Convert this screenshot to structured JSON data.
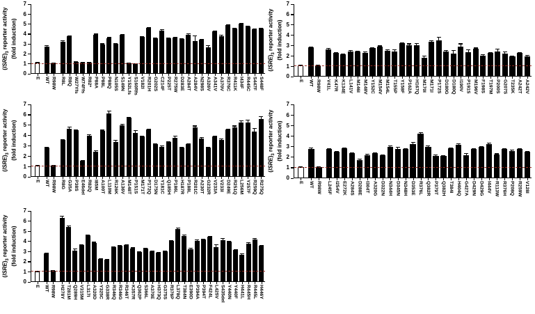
{
  "figure": {
    "background": "#ffffff",
    "bar_color": "#000000",
    "open_bar_fill": "#ffffff",
    "baseline_color": "#962b22",
    "axis_color": "#000000",
    "ylabel": {
      "pre": "(",
      "gene": "ISRE",
      "close": ")",
      "sub": "3",
      "rest": " reporter activity",
      "line2": "(fold induction)"
    }
  },
  "chart_data": [
    {
      "type": "bar",
      "panel": "top-left",
      "ylabel": "(ISRE)3 reporter activity (fold induction)",
      "ylim": [
        0,
        7
      ],
      "yticks": [
        0,
        1,
        2,
        3,
        4,
        5,
        6,
        7
      ],
      "baseline_y": 1,
      "legend": "none",
      "grid": false,
      "open_bars": [
        "E"
      ],
      "gap_after": [
        "E",
        "R98W"
      ],
      "categories": [
        "E",
        "WT",
        "R98W",
        "R8L",
        "R8Q",
        "W27Yfs",
        "W74Ffs",
        "R82*",
        "P88A",
        "P88L",
        "P88Q",
        "N105S",
        "S149N",
        "Y152Lfs",
        "S160Rfs",
        "V182I",
        "R201H",
        "G202S",
        "C214F",
        "P225T",
        "R275W",
        "D283E",
        "A284T",
        "A284V",
        "N298S",
        "A326V",
        "A341V",
        "A370V",
        "R376C",
        "R411K",
        "I434F",
        "R445C",
        "S447F",
        "S448F"
      ],
      "values": [
        1.1,
        2.75,
        1.05,
        3.2,
        3.75,
        1.2,
        1.1,
        1.15,
        3.95,
        2.95,
        3.6,
        3.0,
        3.9,
        1.05,
        0.95,
        3.7,
        4.6,
        3.55,
        4.35,
        3.6,
        3.65,
        3.5,
        3.95,
        3.3,
        3.4,
        2.65,
        4.25,
        3.75,
        4.9,
        4.55,
        5.05,
        4.75,
        4.5,
        4.55
      ],
      "errors": [
        0.05,
        0.12,
        0.05,
        0.15,
        0.1,
        0.05,
        0.05,
        0.05,
        0.08,
        0.1,
        0.08,
        0.08,
        0.1,
        0.05,
        0.05,
        0.08,
        0.1,
        0.05,
        0.12,
        0.05,
        0.08,
        0.05,
        0.1,
        0.55,
        0.05,
        0.2,
        0.1,
        0.2,
        0.1,
        0.1,
        0.08,
        0.1,
        0.05,
        0.08
      ]
    },
    {
      "type": "bar",
      "panel": "middle-left",
      "ylabel": "(ISRE)3 reporter activity (fold induction)",
      "ylim": [
        0,
        7
      ],
      "yticks": [
        0,
        1,
        2,
        3,
        4,
        5,
        6,
        7
      ],
      "baseline_y": 1,
      "legend": "none",
      "grid": false,
      "open_bars": [
        "E"
      ],
      "gap_after": [
        "E",
        "R98W"
      ],
      "categories": [
        "E",
        "WT",
        "R98W",
        "R8G",
        "G35A",
        "P38S",
        "E46del",
        "R82Q",
        "I85M",
        "A100T",
        "L110M",
        "R126K",
        "A136V",
        "M148T",
        "P151S",
        "M171T",
        "P172Q",
        "D175N",
        "Y181C",
        "Q185H",
        "P186L",
        "H187R",
        "P188L",
        "R201C",
        "A230T",
        "G232R",
        "V233A",
        "V233I",
        "D249E",
        "R251Q",
        "L256M",
        "Y257F",
        "R259Q",
        "R275Q"
      ],
      "values": [
        1.05,
        2.8,
        1.05,
        3.55,
        4.65,
        4.5,
        1.55,
        3.95,
        2.45,
        4.45,
        6.1,
        3.35,
        5.0,
        5.7,
        4.25,
        3.9,
        4.55,
        3.15,
        2.9,
        3.35,
        3.8,
        2.85,
        3.15,
        4.75,
        3.7,
        2.85,
        3.9,
        3.6,
        4.6,
        4.8,
        5.25,
        5.25,
        4.4,
        5.6
      ],
      "errors": [
        0.05,
        0.1,
        0.05,
        0.08,
        0.2,
        0.05,
        0.08,
        0.15,
        0.1,
        0.1,
        0.3,
        0.2,
        0.15,
        0.12,
        0.25,
        0.1,
        0.1,
        0.1,
        0.15,
        0.1,
        0.15,
        0.05,
        0.05,
        0.2,
        0.15,
        0.05,
        0.08,
        0.08,
        0.05,
        0.15,
        0.2,
        0.25,
        0.3,
        0.25
      ]
    },
    {
      "type": "bar",
      "panel": "bottom-left",
      "ylabel": "(ISRE)3 reporter activity (fold induction)",
      "ylim": [
        0,
        7
      ],
      "yticks": [
        0,
        1,
        2,
        3,
        4,
        5,
        6,
        7
      ],
      "baseline_y": 1,
      "legend": "none",
      "grid": false,
      "open_bars": [
        "E"
      ],
      "gap_after": [
        "E",
        "R98W"
      ],
      "categories": [
        "E",
        "WT",
        "R98W",
        "H278Y",
        "T281M",
        "Q289H",
        "V315M",
        "L317I",
        "A320D",
        "Y325C",
        "G338R",
        "R346Q",
        "R346G",
        "R346T",
        "K357R",
        "Q362P",
        "S366L",
        "A370E",
        "H373Q",
        "G375S",
        "R376P",
        "L378Q",
        "T384N",
        "E390D",
        "P394A",
        "P394T",
        "F424L",
        "L425V",
        "S435del",
        "Y440N",
        "Y440F",
        "H441L",
        "R445H",
        "R445L",
        "H446Y"
      ],
      "values": [
        1.05,
        2.8,
        1.1,
        6.3,
        5.4,
        3.1,
        3.65,
        4.6,
        3.85,
        2.25,
        2.2,
        3.4,
        3.55,
        3.65,
        3.3,
        2.95,
        3.3,
        3.0,
        2.85,
        3.05,
        4.05,
        5.2,
        4.55,
        3.25,
        4.05,
        4.2,
        4.45,
        3.45,
        4.1,
        3.95,
        3.15,
        2.65,
        3.8,
        4.2,
        3.55
      ],
      "errors": [
        0.05,
        0.1,
        0.05,
        0.25,
        0.15,
        0.2,
        0.08,
        0.1,
        0.1,
        0.1,
        0.1,
        0.05,
        0.05,
        0.05,
        0.1,
        0.05,
        0.08,
        0.1,
        0.05,
        0.05,
        0.1,
        0.15,
        0.15,
        0.1,
        0.15,
        0.05,
        0.1,
        0.25,
        0.2,
        0.1,
        0.1,
        0.15,
        0.1,
        0.1,
        0.1
      ]
    },
    {
      "type": "bar",
      "panel": "top-right",
      "ylabel": "(ISRE)3 reporter activity (fold induction)",
      "ylim": [
        0,
        7
      ],
      "yticks": [
        0,
        1,
        2,
        3,
        4,
        5,
        6,
        7
      ],
      "baseline_y": 1,
      "legend": "none",
      "grid": false,
      "open_bars": [
        "E"
      ],
      "gap_after": [
        "E",
        "R98W"
      ],
      "categories": [
        "E",
        "WT",
        "R98W",
        "V41L",
        "K47R",
        "K134E",
        "L141V",
        "M146I",
        "M148V",
        "Y152C",
        "M154V",
        "M154L",
        "T155P",
        "Y158F",
        "P162A",
        "H167Q",
        "M170I",
        "M171I",
        "P172S",
        "D180G",
        "D180Q",
        "I190V",
        "P191S",
        "M196V",
        "F198S",
        "T197M",
        "P200S",
        "G207S",
        "T235K",
        "A242T",
        "A242V"
      ],
      "values": [
        1.05,
        2.8,
        1.05,
        2.65,
        2.3,
        2.15,
        2.45,
        2.45,
        2.3,
        2.75,
        2.9,
        2.5,
        2.45,
        3.2,
        3.05,
        3.05,
        1.85,
        3.4,
        3.5,
        2.4,
        2.2,
        2.9,
        2.35,
        2.7,
        2.0,
        2.3,
        2.45,
        2.25,
        1.95,
        2.3,
        1.95
      ],
      "errors": [
        0.05,
        0.1,
        0.05,
        0.1,
        0.05,
        0.05,
        0.1,
        0.05,
        0.15,
        0.1,
        0.1,
        0.1,
        0.15,
        0.1,
        0.15,
        0.2,
        0.15,
        0.1,
        0.35,
        0.15,
        0.35,
        0.3,
        0.25,
        0.1,
        0.15,
        0.05,
        0.25,
        0.15,
        0.05,
        0.05,
        0.15
      ]
    },
    {
      "type": "bar",
      "panel": "middle-right",
      "ylabel": "(ISRE)3 reporter activity (fold induction)",
      "ylim": [
        0,
        7
      ],
      "yticks": [
        0,
        1,
        2,
        3,
        4,
        5,
        6,
        7
      ],
      "baseline_y": 1,
      "legend": "none",
      "grid": false,
      "open_bars": [
        "E"
      ],
      "gap_after": [
        "E",
        "R98W"
      ],
      "categories": [
        "E",
        "WT",
        "R98W",
        "L245F",
        "I254V",
        "E272K",
        "A284S",
        "D288E",
        "I304T",
        "A320G",
        "D322N",
        "N344H",
        "D345N",
        "N348H",
        "D353E",
        "R376L",
        "Q382R",
        "P379T",
        "Q382H",
        "T384I",
        "H404Q",
        "G427A",
        "D429N",
        "D429G",
        "I444V",
        "R113W",
        "R376H",
        "P208Q",
        "R259W",
        "V128I"
      ],
      "values": [
        1.05,
        2.8,
        1.05,
        2.75,
        2.5,
        2.85,
        2.4,
        1.75,
        2.2,
        2.4,
        2.15,
        3.0,
        2.8,
        2.75,
        3.25,
        4.25,
        3.0,
        2.1,
        2.1,
        2.85,
        3.15,
        2.2,
        2.8,
        3.0,
        3.25,
        2.25,
        2.8,
        2.6,
        2.75,
        2.5
      ],
      "errors": [
        0.05,
        0.1,
        0.05,
        0.1,
        0.05,
        0.05,
        0.05,
        0.1,
        0.1,
        0.05,
        0.05,
        0.1,
        0.15,
        0.1,
        0.2,
        0.1,
        0.1,
        0.15,
        0.05,
        0.05,
        0.15,
        0.2,
        0.05,
        0.05,
        0.1,
        0.1,
        0.05,
        0.1,
        0.05,
        0.1
      ]
    }
  ]
}
